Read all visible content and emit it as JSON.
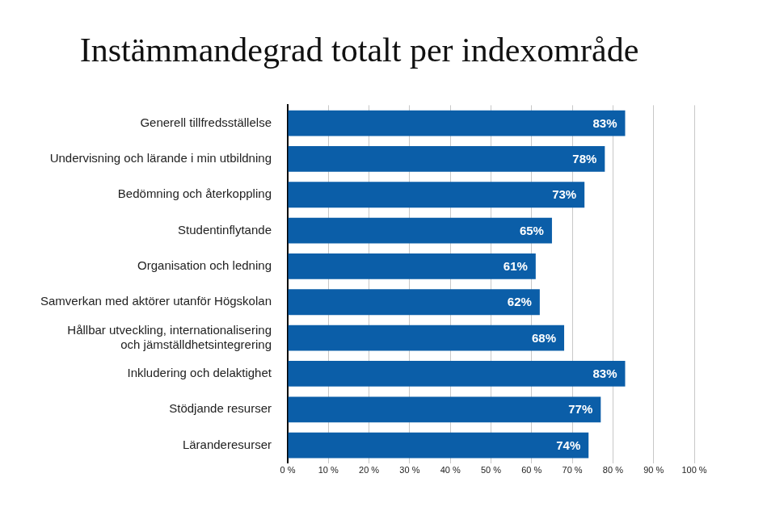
{
  "chart_data": {
    "type": "bar",
    "orientation": "horizontal",
    "title": "Instämmandegrad totalt per indexområde",
    "categories": [
      "Generell tillfredsställelse",
      "Undervisning och lärande i min utbildning",
      "Bedömning och återkoppling",
      "Studentinflytande",
      "Organisation och ledning",
      "Samverkan med aktörer utanför Högskolan",
      "Hållbar utveckling, internationalisering\noch jämställdhetsintegrering",
      "Inkludering och delaktighet",
      "Stödjande resurser",
      "Läranderesurser"
    ],
    "values": [
      83,
      78,
      73,
      65,
      61,
      62,
      68,
      83,
      77,
      74
    ],
    "value_labels": [
      "83%",
      "78%",
      "73%",
      "65%",
      "61%",
      "62%",
      "68%",
      "83%",
      "77%",
      "74%"
    ],
    "data_labels": true,
    "color": "#0b5ea8",
    "xlim": [
      0,
      100
    ],
    "xticks": [
      {
        "value": 0,
        "label": "0 %"
      },
      {
        "value": 10,
        "label": "10 %"
      },
      {
        "value": 20,
        "label": "20 %"
      },
      {
        "value": 30,
        "label": "30 %"
      },
      {
        "value": 40,
        "label": "40 %"
      },
      {
        "value": 50,
        "label": "50 %"
      },
      {
        "value": 60,
        "label": "60 %"
      },
      {
        "value": 70,
        "label": "70 %"
      },
      {
        "value": 80,
        "label": "80 %"
      },
      {
        "value": 90,
        "label": "90 %"
      },
      {
        "value": 100,
        "label": "100 %"
      }
    ],
    "grid": true
  }
}
